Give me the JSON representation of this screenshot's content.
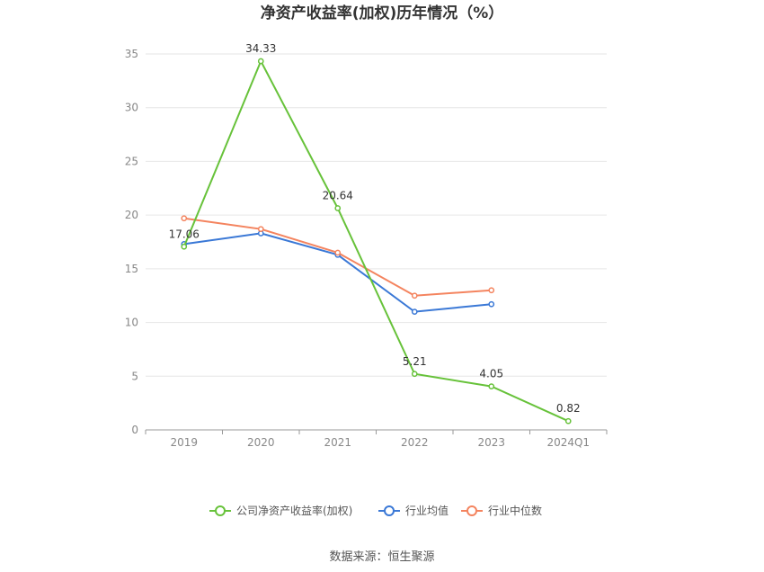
{
  "chart_data": {
    "type": "line",
    "title": "净资产收益率(加权)历年情况（%）",
    "categories": [
      "2019",
      "2020",
      "2021",
      "2022",
      "2023",
      "2024Q1"
    ],
    "ylim": [
      0,
      35
    ],
    "yticks": [
      "0",
      "5",
      "10",
      "15",
      "20",
      "25",
      "30",
      "35"
    ],
    "grid": true,
    "legend_position": "bottom",
    "series": [
      {
        "name": "公司净资产收益率(加权)",
        "color": "#67c23a",
        "values": [
          17.06,
          34.33,
          20.64,
          5.21,
          4.05,
          0.82
        ],
        "labels": [
          "17.06",
          "34.33",
          "20.64",
          "5.21",
          "4.05",
          "0.82"
        ]
      },
      {
        "name": "行业均值",
        "color": "#3a78d6",
        "values": [
          17.3,
          18.3,
          16.3,
          11.0,
          11.7,
          null
        ]
      },
      {
        "name": "行业中位数",
        "color": "#f4845f",
        "values": [
          19.7,
          18.7,
          16.5,
          12.5,
          13.0,
          null
        ]
      }
    ],
    "source": "数据来源：恒生聚源"
  }
}
